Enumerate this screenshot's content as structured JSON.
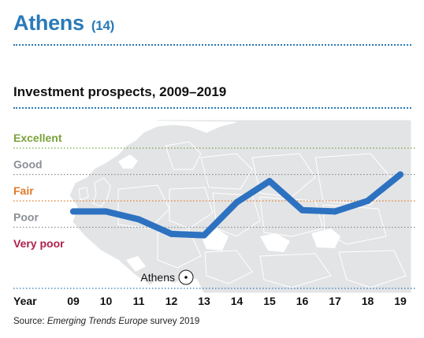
{
  "header": {
    "title": "Athens",
    "rank": "(14)"
  },
  "chart_data": {
    "type": "line",
    "title": "Investment prospects, 2009–2019",
    "xlabel": "Year",
    "categories": [
      "09",
      "10",
      "11",
      "12",
      "13",
      "14",
      "15",
      "16",
      "17",
      "18",
      "19"
    ],
    "series": [
      {
        "values": [
          2.6,
          2.6,
          2.3,
          1.75,
          1.7,
          2.95,
          3.75,
          2.65,
          2.6,
          3.0,
          4.0
        ]
      }
    ],
    "y_levels": [
      {
        "label": "Excellent",
        "value": 5,
        "color": "#7aa23a"
      },
      {
        "label": "Good",
        "value": 4,
        "color": "#8a8f96"
      },
      {
        "label": "Fair",
        "value": 3,
        "color": "#e07a2a"
      },
      {
        "label": "Poor",
        "value": 2,
        "color": "#8a8f96"
      },
      {
        "label": "Very poor",
        "value": 1,
        "color": "#b0204a"
      }
    ],
    "ylim": [
      1,
      5
    ],
    "line_color": "#2d72c0",
    "annotation": "Athens"
  },
  "footer": {
    "source_prefix": "Source: ",
    "source_italic": "Emerging Trends Europe",
    "source_suffix": " survey 2019"
  }
}
